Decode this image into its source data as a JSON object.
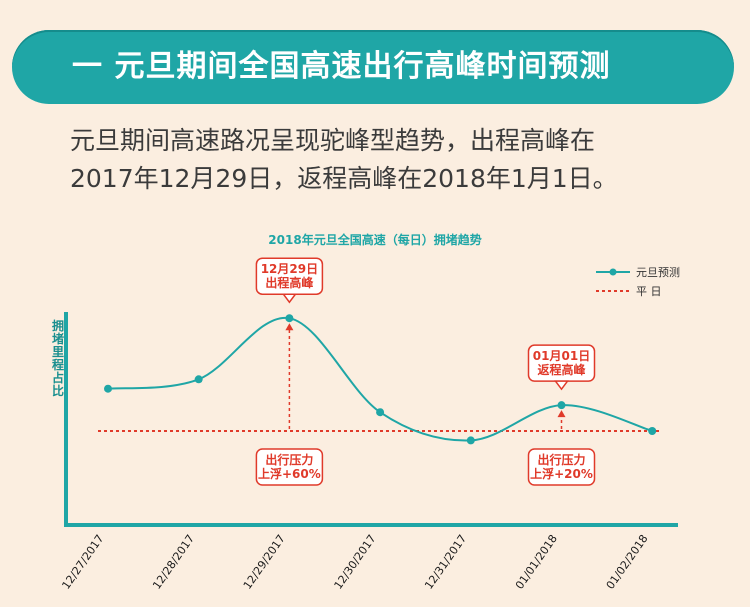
{
  "banner": {
    "text": "一 元旦期间全国高速出行高峰时间预测"
  },
  "intro": {
    "line1": "元旦期间高速路况呈现驼峰型趋势，出程高峰在",
    "line2": "2017年12月29日，返程高峰在2018年1月1日。"
  },
  "colors": {
    "teal": "#1fa6a6",
    "red": "#e03a2a",
    "background": "#fbeee0"
  },
  "chart_data": {
    "type": "line",
    "title": "2018年元旦全国高速（每日）拥堵趋势",
    "ylabel": "拥堵里程占比",
    "xlabel": "",
    "categories": [
      "12/27/2017",
      "12/28/2017",
      "12/29/2017",
      "12/30/2017",
      "12/31/2017",
      "01/01/2018",
      "01/02/2018"
    ],
    "series": [
      {
        "name": "元旦预测",
        "values": [
          0.58,
          0.62,
          0.88,
          0.48,
          0.36,
          0.51,
          0.4
        ],
        "color": "#1fa6a6"
      }
    ],
    "baseline": {
      "name": "平 日",
      "value": 0.4,
      "color": "#e03a2a"
    },
    "ylim": [
      0,
      1
    ],
    "yticks_shown": false,
    "grid": false,
    "legend_position": "top-right",
    "annotations": [
      {
        "category": "12/29/2017",
        "top_label": [
          "12月29日",
          "出程高峰"
        ],
        "bottom_label": [
          "出行压力",
          "上浮+60%"
        ]
      },
      {
        "category": "01/01/2018",
        "top_label": [
          "01月01日",
          "返程高峰"
        ],
        "bottom_label": [
          "出行压力",
          "上浮+20%"
        ]
      }
    ]
  }
}
